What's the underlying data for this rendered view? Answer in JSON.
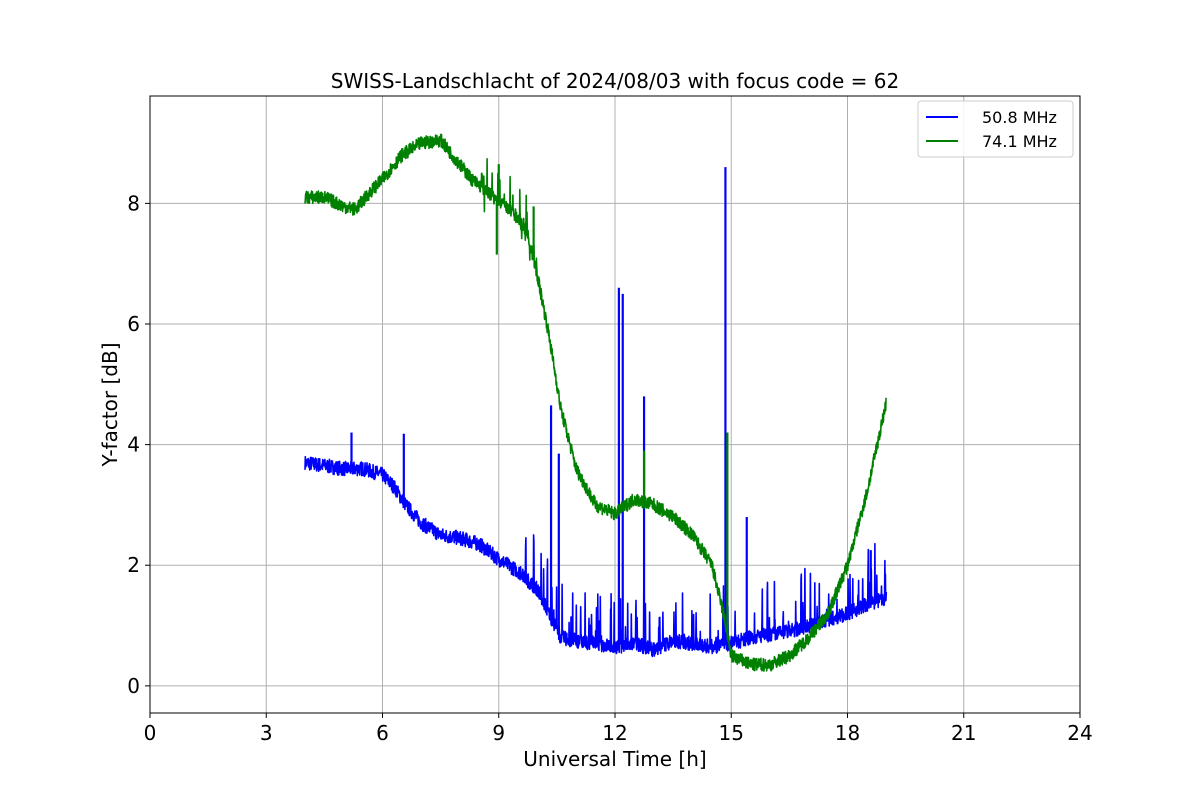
{
  "chart_data": {
    "type": "line",
    "title": "SWISS-Landschlacht of 2024/08/03 with focus code = 62",
    "xlabel": "Universal Time [h]",
    "ylabel": "Y-factor [dB]",
    "xlim": [
      0,
      24
    ],
    "ylim": [
      -0.45,
      9.78
    ],
    "xticks": [
      0,
      3,
      6,
      9,
      12,
      15,
      18,
      21,
      24
    ],
    "yticks": [
      0,
      2,
      4,
      6,
      8
    ],
    "xtick_labels": [
      "0",
      "3",
      "6",
      "9",
      "12",
      "15",
      "18",
      "21",
      "24"
    ],
    "ytick_labels": [
      "0",
      "2",
      "4",
      "6",
      "8"
    ],
    "grid": true,
    "legend_position": "top-right",
    "series": [
      {
        "name": "50.8 MHz",
        "color": "#0000ff",
        "x": [
          4.0,
          4.5,
          5.0,
          5.5,
          6.0,
          6.3,
          6.6,
          7.0,
          7.5,
          8.0,
          8.5,
          9.0,
          9.5,
          10.0,
          10.3,
          10.6,
          11.0,
          11.5,
          12.0,
          12.5,
          13.0,
          13.5,
          14.0,
          14.5,
          15.0,
          15.5,
          16.0,
          16.5,
          17.0,
          17.5,
          18.0,
          18.5,
          19.0
        ],
        "y": [
          3.7,
          3.65,
          3.6,
          3.6,
          3.5,
          3.3,
          3.0,
          2.7,
          2.5,
          2.45,
          2.35,
          2.1,
          1.9,
          1.6,
          1.2,
          0.8,
          0.75,
          0.7,
          0.65,
          0.7,
          0.6,
          0.75,
          0.7,
          0.65,
          0.7,
          0.8,
          0.85,
          0.9,
          1.0,
          1.1,
          1.2,
          1.35,
          1.45
        ],
        "spikes": [
          {
            "x": 5.2,
            "y": 4.2
          },
          {
            "x": 6.55,
            "y": 4.18
          },
          {
            "x": 10.35,
            "y": 4.65
          },
          {
            "x": 10.55,
            "y": 3.85
          },
          {
            "x": 12.1,
            "y": 6.6
          },
          {
            "x": 12.2,
            "y": 6.5
          },
          {
            "x": 12.75,
            "y": 4.8
          },
          {
            "x": 14.85,
            "y": 8.6
          },
          {
            "x": 15.4,
            "y": 2.8
          },
          {
            "x": 18.6,
            "y": 2.25
          }
        ]
      },
      {
        "name": "74.1 MHz",
        "color": "#008000",
        "x": [
          4.0,
          4.5,
          5.0,
          5.3,
          5.7,
          6.0,
          6.5,
          7.0,
          7.5,
          7.8,
          8.3,
          8.8,
          9.3,
          9.7,
          10.0,
          10.3,
          10.6,
          11.0,
          11.5,
          12.0,
          12.5,
          13.0,
          13.5,
          14.0,
          14.5,
          14.8,
          15.0,
          15.5,
          16.0,
          16.5,
          17.0,
          17.5,
          18.0,
          18.5,
          19.0
        ],
        "y": [
          8.1,
          8.1,
          7.95,
          7.9,
          8.2,
          8.4,
          8.8,
          9.0,
          9.05,
          8.8,
          8.4,
          8.15,
          7.9,
          7.6,
          6.8,
          5.8,
          4.6,
          3.6,
          3.0,
          2.85,
          3.1,
          3.0,
          2.8,
          2.5,
          2.0,
          1.2,
          0.5,
          0.35,
          0.35,
          0.5,
          0.8,
          1.2,
          2.0,
          3.2,
          4.7
        ],
        "spikes": [
          {
            "x": 8.95,
            "y": 7.15
          },
          {
            "x": 9.0,
            "y": 8.65
          },
          {
            "x": 9.9,
            "y": 7.95
          },
          {
            "x": 12.75,
            "y": 3.9
          },
          {
            "x": 14.9,
            "y": 4.2
          }
        ]
      }
    ]
  }
}
